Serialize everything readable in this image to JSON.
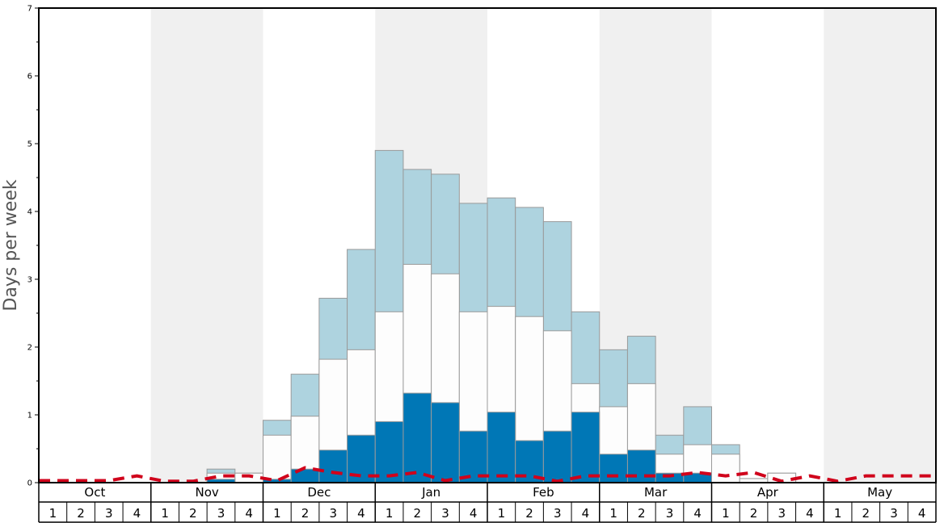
{
  "chart_data": {
    "type": "bar",
    "ylabel": "Days per week",
    "ylim": [
      0,
      7
    ],
    "y_ticks": [
      "0",
      "1",
      "2",
      "3",
      "4",
      "5",
      "6",
      "7"
    ],
    "months": [
      "Oct",
      "Nov",
      "Dec",
      "Jan",
      "Feb",
      "Mar",
      "Apr",
      "May"
    ],
    "week_labels": [
      "1",
      "2",
      "3",
      "4"
    ],
    "stacked_cumulative": true,
    "series": [
      {
        "name": "",
        "color": "#0077b6",
        "values": [
          0,
          0,
          0,
          0,
          0,
          0,
          0.05,
          0,
          0.05,
          0.2,
          0.48,
          0.7,
          0.9,
          1.32,
          1.18,
          0.76,
          1.04,
          0.62,
          0.76,
          1.04,
          0.42,
          0.48,
          0.14,
          0.14,
          0,
          0,
          0,
          0,
          0,
          0,
          0,
          0
        ]
      },
      {
        "name": "",
        "color": "#fdfdfd",
        "values": [
          0,
          0,
          0,
          0,
          0,
          0,
          0.14,
          0.14,
          0.7,
          0.98,
          1.82,
          1.96,
          2.52,
          3.22,
          3.08,
          2.52,
          2.6,
          2.45,
          2.24,
          1.46,
          1.12,
          1.46,
          0.42,
          0.56,
          0.42,
          0.06,
          0.14,
          0,
          0,
          0,
          0,
          0
        ]
      },
      {
        "name": "",
        "color": "#aed3df",
        "values": [
          0,
          0,
          0,
          0,
          0,
          0,
          0.2,
          0.14,
          0.92,
          1.6,
          2.72,
          3.44,
          4.9,
          4.62,
          4.55,
          4.12,
          4.2,
          4.06,
          3.85,
          2.52,
          1.96,
          2.16,
          0.7,
          1.12,
          0.56,
          0.06,
          0.14,
          0,
          0,
          0,
          0,
          0
        ]
      }
    ],
    "trend_line": {
      "name": "",
      "color": "#d0021b",
      "values": [
        0.03,
        0.03,
        0.03,
        0.1,
        0.02,
        0.02,
        0.1,
        0.1,
        0.03,
        0.22,
        0.15,
        0.1,
        0.1,
        0.15,
        0.03,
        0.1,
        0.1,
        0.1,
        0.02,
        0.1,
        0.1,
        0.1,
        0.1,
        0.15,
        0.1,
        0.15,
        0.02,
        0.1,
        0.02,
        0.1,
        0.1,
        0.1
      ]
    },
    "grid": false,
    "legend": "none"
  }
}
